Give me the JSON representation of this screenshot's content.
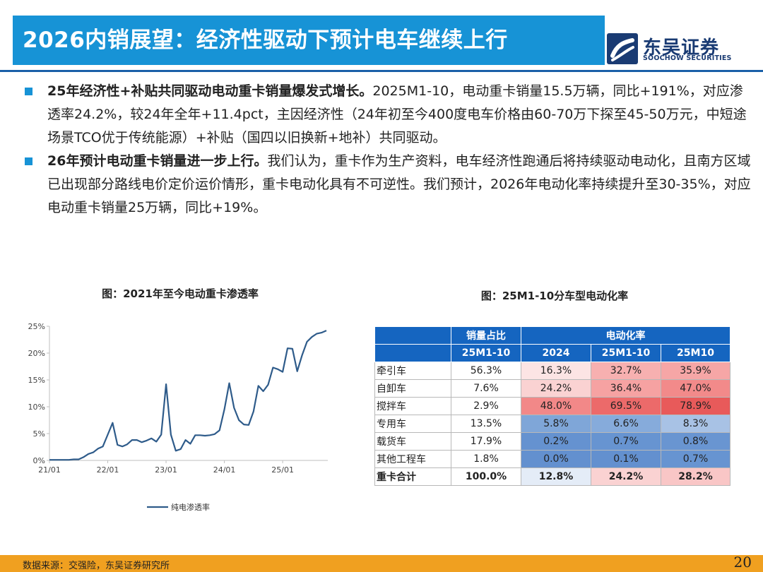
{
  "header": {
    "title": "2026内销展望：经济性驱动下预计电车继续上行",
    "logo_cn": "东吴证券",
    "logo_en": "SOOCHOW SECURITIES"
  },
  "bullets": [
    {
      "lead": "25年经济性+补贴共同驱动电动重卡销量爆发式增长。",
      "body": "2025M1-10，电动重卡销量15.5万辆，同比+191%，对应渗透率24.2%，较24年全年+11.4pct，主因经济性（24年初至今400度电车价格由60-70万下探至45-50万元，中短途场景TCO优于传统能源）+补贴（国四以旧换新+地补）共同驱动。"
    },
    {
      "lead": "26年预计电动重卡销量进一步上行。",
      "body": "我们认为，重卡作为生产资料，电车经济性跑通后将持续驱动电动化，且南方区域已出现部分路线电价定价运价情形，重卡电动化具有不可逆性。我们预计，2026年电动化率持续提升至30-35%，对应电动重卡销量25万辆，同比+19%。"
    }
  ],
  "chart_data": [
    {
      "type": "line",
      "title": "图：2021年至今电动重卡渗透率",
      "xlabel": "",
      "ylabel": "",
      "x_ticks": [
        "21/01",
        "22/01",
        "23/01",
        "24/01",
        "25/01"
      ],
      "y_ticks": [
        "0%",
        "5%",
        "10%",
        "15%",
        "20%",
        "25%"
      ],
      "ylim": [
        0,
        25
      ],
      "grid": false,
      "legend": "bottom",
      "line_color": "#2e5b8a",
      "series": [
        {
          "name": "纯电渗透率",
          "x": [
            "21/01",
            "21/02",
            "21/03",
            "21/04",
            "21/05",
            "21/06",
            "21/07",
            "21/08",
            "21/09",
            "21/10",
            "21/11",
            "21/12",
            "22/01",
            "22/02",
            "22/03",
            "22/04",
            "22/05",
            "22/06",
            "22/07",
            "22/08",
            "22/09",
            "22/10",
            "22/11",
            "22/12",
            "23/01",
            "23/02",
            "23/03",
            "23/04",
            "23/05",
            "23/06",
            "23/07",
            "23/08",
            "23/09",
            "23/10",
            "23/11",
            "23/12",
            "24/01",
            "24/02",
            "24/03",
            "24/04",
            "24/05",
            "24/06",
            "24/07",
            "24/08",
            "24/09",
            "24/10",
            "24/11",
            "24/12",
            "25/01",
            "25/02",
            "25/03",
            "25/04",
            "25/05",
            "25/06",
            "25/07",
            "25/08",
            "25/09",
            "25/10"
          ],
          "values": [
            0.1,
            0.1,
            0.1,
            0.1,
            0.1,
            0.2,
            0.2,
            0.6,
            1.2,
            1.5,
            2.2,
            2.6,
            4.8,
            7.0,
            2.9,
            2.6,
            3.0,
            3.8,
            3.8,
            3.4,
            3.7,
            4.1,
            3.5,
            4.8,
            14.2,
            4.8,
            1.8,
            2.1,
            3.8,
            3.1,
            4.7,
            4.7,
            4.6,
            4.7,
            4.9,
            5.6,
            9.5,
            14.4,
            9.8,
            7.5,
            6.7,
            6.6,
            9.1,
            13.9,
            12.9,
            14.1,
            17.3,
            17.0,
            16.5,
            20.9,
            20.8,
            16.6,
            19.6,
            22.1,
            23.0,
            23.6,
            23.8,
            24.2
          ]
        }
      ]
    },
    {
      "type": "table",
      "title": "图：25M1-10分车型电动化率",
      "header_groups": [
        "销量占比",
        "电动化率"
      ],
      "columns": [
        "25M1-10",
        "2024",
        "25M1-10",
        "25M10"
      ],
      "rows": [
        {
          "label": "牵引车",
          "values": [
            "56.3%",
            "16.3%",
            "32.7%",
            "35.9%"
          ],
          "colors": [
            "#ffffff",
            "#fce4e4",
            "#f7b0b0",
            "#f6a6a6"
          ]
        },
        {
          "label": "自卸车",
          "values": [
            "7.6%",
            "24.2%",
            "36.4%",
            "47.0%"
          ],
          "colors": [
            "#ffffff",
            "#fad2d2",
            "#f6a2a2",
            "#f28a8a"
          ]
        },
        {
          "label": "搅拌车",
          "values": [
            "2.9%",
            "48.0%",
            "69.5%",
            "78.9%"
          ],
          "colors": [
            "#ffffff",
            "#f28888",
            "#ec6a6a",
            "#e85a5a"
          ]
        },
        {
          "label": "专用车",
          "values": [
            "13.5%",
            "5.8%",
            "6.6%",
            "8.3%"
          ],
          "colors": [
            "#ffffff",
            "#7fa6d8",
            "#86abdb",
            "#a8c2e5"
          ]
        },
        {
          "label": "载货车",
          "values": [
            "17.9%",
            "0.2%",
            "0.7%",
            "0.8%"
          ],
          "colors": [
            "#ffffff",
            "#6592d0",
            "#6794d1",
            "#6995d1"
          ]
        },
        {
          "label": "其他工程车",
          "values": [
            "1.8%",
            "0.0%",
            "0.1%",
            "0.7%"
          ],
          "colors": [
            "#ffffff",
            "#6390cf",
            "#6390cf",
            "#6794d1"
          ]
        },
        {
          "label": "重卡合计",
          "values": [
            "100.0%",
            "12.8%",
            "24.2%",
            "28.2%"
          ],
          "colors": [
            "#ffffff",
            "#e4ecf7",
            "#fad2d2",
            "#f9c6c6"
          ],
          "total": true
        }
      ]
    }
  ],
  "footer": {
    "source": "数据来源：交强险，东吴证券研究所",
    "page": "20"
  }
}
